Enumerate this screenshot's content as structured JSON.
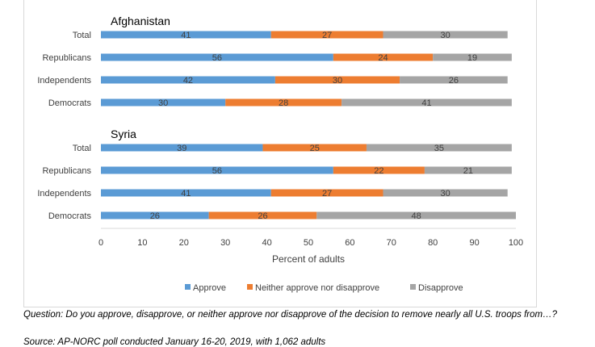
{
  "chart_data": {
    "type": "bar",
    "stacked": true,
    "orientation": "horizontal",
    "groups": [
      {
        "title": "Afghanistan",
        "categories": [
          "Total",
          "Republicans",
          "Independents",
          "Democrats"
        ],
        "series": [
          {
            "name": "Approve",
            "values": [
              41,
              56,
              42,
              30
            ]
          },
          {
            "name": "Neither approve nor disapprove",
            "values": [
              27,
              24,
              30,
              28
            ]
          },
          {
            "name": "Disapprove",
            "values": [
              30,
              19,
              26,
              41
            ]
          }
        ]
      },
      {
        "title": "Syria",
        "categories": [
          "Total",
          "Republicans",
          "Independents",
          "Democrats"
        ],
        "series": [
          {
            "name": "Approve",
            "values": [
              39,
              56,
              41,
              26
            ]
          },
          {
            "name": "Neither approve nor disapprove",
            "values": [
              25,
              22,
              27,
              26
            ]
          },
          {
            "name": "Disapprove",
            "values": [
              35,
              21,
              30,
              48
            ]
          }
        ]
      }
    ],
    "xlabel": "Percent of adults",
    "xlim": [
      0,
      100
    ],
    "xticks": [
      0,
      10,
      20,
      30,
      40,
      50,
      60,
      70,
      80,
      90,
      100
    ],
    "grid": false,
    "legend_position": "bottom",
    "colors": {
      "Approve": "#5b9bd5",
      "Neither approve nor disapprove": "#ed7d31",
      "Disapprove": "#a5a5a5"
    }
  },
  "footnotes": {
    "question": "Question: Do you approve, disapprove, or neither approve nor disapprove of the decision to remove nearly all U.S. troops from…?",
    "source": "Source: AP-NORC poll conducted January 16-20, 2019, with 1,062 adults"
  }
}
